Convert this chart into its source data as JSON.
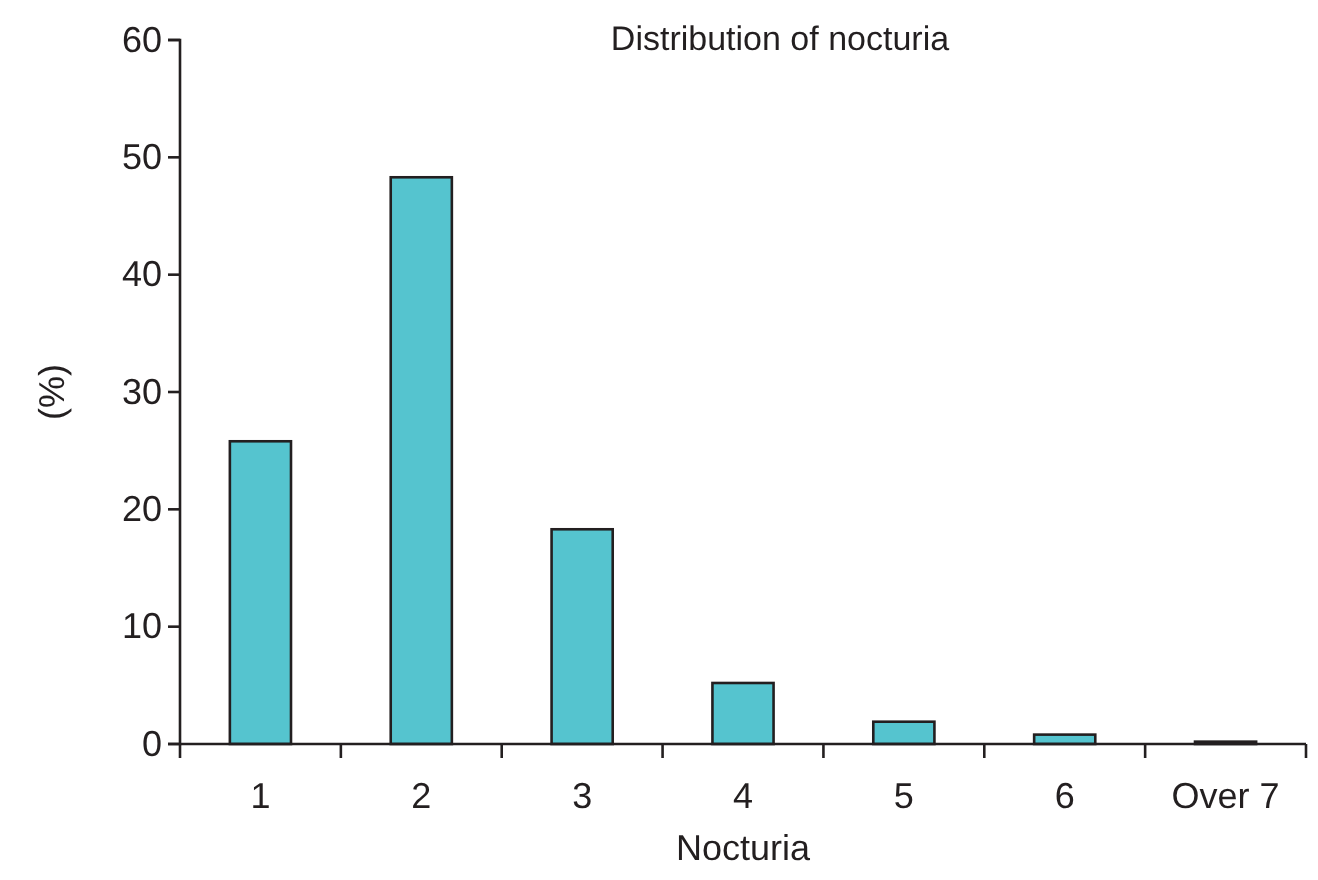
{
  "chart_data": {
    "type": "bar",
    "title": "Distribution of nocturia",
    "xlabel": "Nocturia",
    "ylabel": "(%)",
    "categories": [
      "1",
      "2",
      "3",
      "4",
      "5",
      "6",
      "Over 7"
    ],
    "values": [
      25.8,
      48.3,
      18.3,
      5.2,
      1.9,
      0.8,
      0.2
    ],
    "color": "#55c4cf",
    "ylim": [
      0,
      60
    ],
    "yticks": [
      0,
      10,
      20,
      30,
      40,
      50,
      60
    ]
  }
}
